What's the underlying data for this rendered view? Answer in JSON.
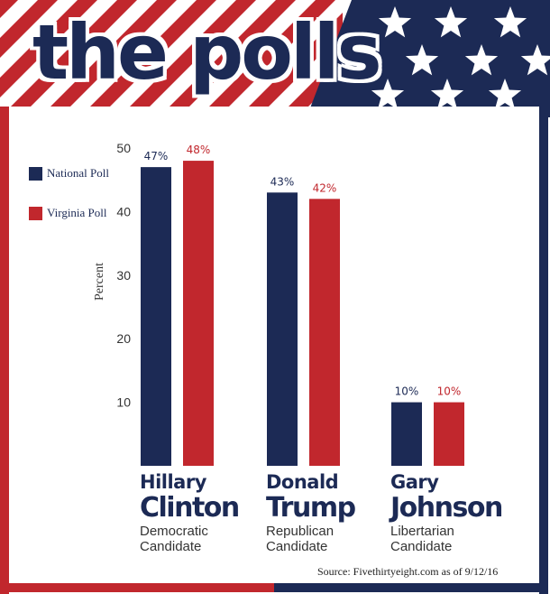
{
  "title": "the polls",
  "colors": {
    "national": "#1c2a55",
    "virginia": "#c1272d",
    "flag_blue": "#1c2a55",
    "flag_red": "#c1272d",
    "star": "#ffffff"
  },
  "legend": [
    {
      "label": "National Poll",
      "color": "#1c2a55"
    },
    {
      "label": "Virginia Poll",
      "color": "#c1272d"
    }
  ],
  "chart_data": {
    "type": "bar",
    "ylabel": "Percent",
    "ylim": [
      0,
      50
    ],
    "yticks": [
      10,
      20,
      30,
      40,
      50
    ],
    "grid": false,
    "legend_position": "top-left",
    "categories": [
      "Hillary Clinton",
      "Donald Trump",
      "Gary Johnson"
    ],
    "series": [
      {
        "name": "National Poll",
        "values": [
          47,
          43,
          10
        ],
        "labels": [
          "47%",
          "43%",
          "10%"
        ]
      },
      {
        "name": "Virginia Poll",
        "values": [
          48,
          42,
          10
        ],
        "labels": [
          "48%",
          "42%",
          "10%"
        ]
      }
    ]
  },
  "candidates": [
    {
      "first": "Hillary",
      "last": "Clinton",
      "party": "Democratic",
      "role": "Candidate"
    },
    {
      "first": "Donald",
      "last": "Trump",
      "party": "Republican",
      "role": "Candidate"
    },
    {
      "first": "Gary",
      "last": "Johnson",
      "party": "Libertarian",
      "role": "Candidate"
    }
  ],
  "source": "Source: Fivethirtyeight.com  as of 9/12/16"
}
